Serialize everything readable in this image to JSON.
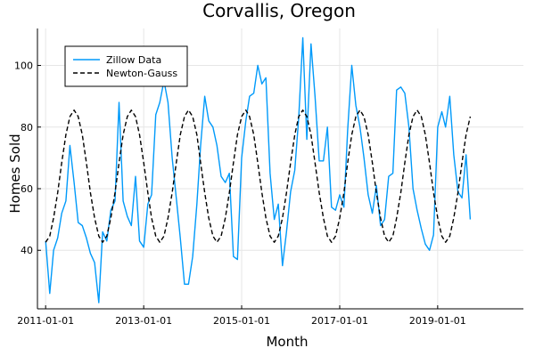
{
  "chart_data": {
    "type": "line",
    "title": "Corvallis, Oregon",
    "xlabel": "Month",
    "ylabel": "Homes Sold",
    "x_start": "2011-01-01",
    "x_step": "month",
    "xlim": [
      "2010-11-01",
      "2020-10-01"
    ],
    "ylim": [
      21,
      112
    ],
    "xticks": [
      "2011-01-01",
      "2013-01-01",
      "2015-01-01",
      "2017-01-01",
      "2019-01-01"
    ],
    "yticks": [
      40,
      60,
      80,
      100
    ],
    "grid": true,
    "legend_position": "top-left",
    "series": [
      {
        "name": "Zillow Data",
        "color": "#009AFA",
        "style": "solid",
        "values": [
          43,
          26,
          40,
          44,
          52,
          56,
          74,
          62,
          49,
          48,
          44,
          39,
          36,
          23,
          46,
          43,
          53,
          56,
          88,
          56,
          51,
          48,
          64,
          43,
          41,
          55,
          58,
          84,
          88,
          95,
          88,
          70,
          57,
          44,
          29,
          29,
          38,
          55,
          74,
          90,
          82,
          80,
          74,
          64,
          62,
          65,
          38,
          37,
          70,
          82,
          90,
          91,
          100,
          94,
          96,
          65,
          50,
          55,
          35,
          46,
          59,
          66,
          83,
          109,
          76,
          107,
          90,
          69,
          69,
          80,
          54,
          53,
          58,
          54,
          79,
          100,
          87,
          80,
          70,
          58,
          52,
          61,
          48,
          50,
          64,
          65,
          92,
          93,
          91,
          80,
          60,
          53,
          47,
          42,
          40,
          45,
          80,
          85,
          80,
          90,
          71,
          59,
          57,
          71,
          50
        ]
      },
      {
        "name": "Newton-Gauss",
        "color": "#000000",
        "style": "dashed",
        "values": [
          42.6,
          44.6,
          50.5,
          58.7,
          68.4,
          77.5,
          83.4,
          85.5,
          83.4,
          77.5,
          68.4,
          58.7,
          50.5,
          44.6,
          42.6,
          44.6,
          50.5,
          58.7,
          68.4,
          77.5,
          83.4,
          85.5,
          83.4,
          77.5,
          68.4,
          58.7,
          50.5,
          44.6,
          42.6,
          44.6,
          50.5,
          58.7,
          68.4,
          77.5,
          83.4,
          85.5,
          83.4,
          77.5,
          68.4,
          58.7,
          50.5,
          44.6,
          42.6,
          44.6,
          50.5,
          58.7,
          68.4,
          77.5,
          83.4,
          85.5,
          83.4,
          77.5,
          68.4,
          58.7,
          50.5,
          44.6,
          42.6,
          44.6,
          50.5,
          58.7,
          68.4,
          77.5,
          83.4,
          85.5,
          83.4,
          77.5,
          68.4,
          58.7,
          50.5,
          44.6,
          42.6,
          44.6,
          50.5,
          58.7,
          68.4,
          77.5,
          83.4,
          85.5,
          83.4,
          77.5,
          68.4,
          58.7,
          50.5,
          44.6,
          42.6,
          44.6,
          50.5,
          58.7,
          68.4,
          77.5,
          83.4,
          85.5,
          83.4,
          77.5,
          68.4,
          58.7,
          50.5,
          44.6,
          42.6,
          44.6,
          50.5,
          58.7,
          68.4,
          77.5,
          83.4
        ]
      }
    ]
  }
}
